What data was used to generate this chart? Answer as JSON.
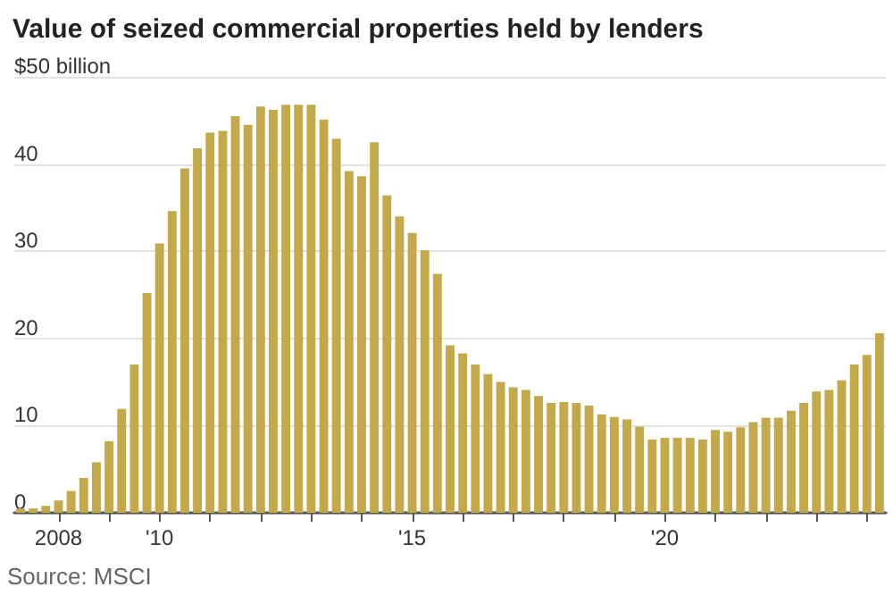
{
  "chart_data": {
    "type": "bar",
    "title": "Value of seized commercial properties held by lenders",
    "categories": [
      null,
      null,
      null,
      "2008",
      null,
      null,
      null,
      null,
      null,
      null,
      null,
      "'10",
      null,
      null,
      null,
      null,
      null,
      null,
      null,
      null,
      null,
      null,
      null,
      null,
      null,
      null,
      null,
      null,
      null,
      null,
      null,
      "'15",
      null,
      null,
      null,
      null,
      null,
      null,
      null,
      null,
      null,
      null,
      null,
      null,
      null,
      null,
      null,
      null,
      null,
      null,
      null,
      "'20",
      null,
      null,
      null,
      null,
      null,
      null,
      null,
      null,
      null,
      null,
      null,
      null,
      null,
      null,
      null,
      null,
      null
    ],
    "values": [
      0.5,
      0.5,
      0.8,
      1.4,
      2.5,
      4.0,
      5.8,
      8.2,
      11.9,
      17.0,
      25.2,
      30.9,
      34.6,
      39.5,
      41.8,
      43.6,
      43.8,
      45.5,
      44.5,
      46.6,
      46.2,
      46.8,
      46.8,
      46.8,
      45.1,
      42.9,
      39.2,
      38.6,
      42.5,
      36.4,
      34.0,
      32.1,
      30.1,
      27.4,
      19.2,
      18.3,
      17.0,
      15.9,
      15.0,
      14.4,
      14.1,
      13.4,
      12.6,
      12.7,
      12.6,
      12.3,
      11.3,
      11.0,
      10.7,
      9.9,
      8.4,
      8.6,
      8.6,
      8.6,
      8.4,
      9.5,
      9.3,
      9.8,
      10.4,
      10.9,
      10.9,
      11.7,
      12.6,
      13.9,
      14.1,
      15.2,
      17.0,
      18.1,
      20.6
    ],
    "color": "#c4a94a",
    "ylim": [
      0,
      50
    ],
    "yticks": [
      0,
      10,
      20,
      30,
      40,
      {
        "value": 50,
        "label": "$50 billion"
      }
    ],
    "grid": "y",
    "annotations": [
      "Source: MSCI"
    ]
  }
}
